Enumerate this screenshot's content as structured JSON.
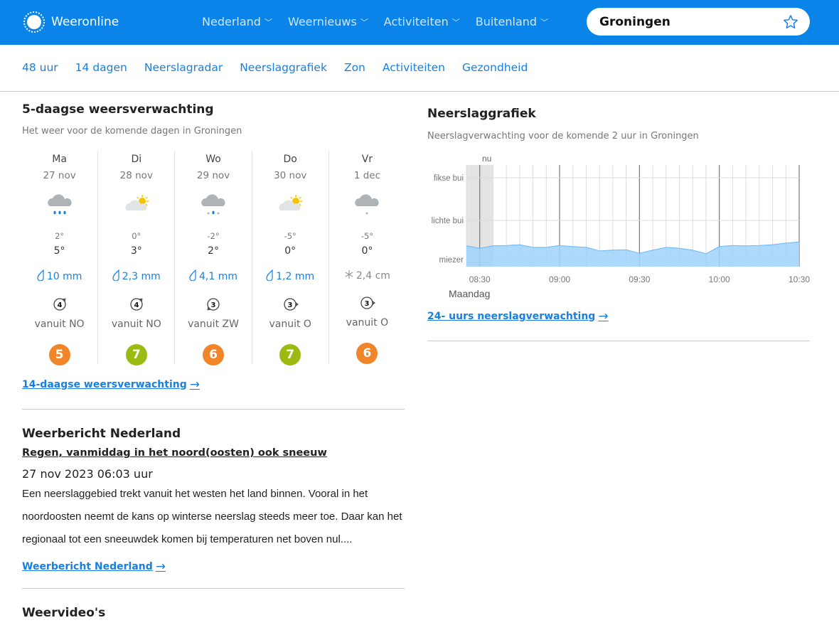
{
  "header": {
    "logo": "Weeronline",
    "nav": [
      "Nederland",
      "Weernieuws",
      "Activiteiten",
      "Buitenland"
    ],
    "search_value": "Groningen",
    "favorite_icon": "star-icon"
  },
  "subnav": [
    "48 uur",
    "14 dagen",
    "Neerslagradar",
    "Neerslaggrafiek",
    "Zon",
    "Activiteiten",
    "Gezondheid"
  ],
  "forecast": {
    "title": "5-daagse weersverwachting",
    "subtitle": "Het weer voor de komende dagen in Groningen",
    "days": [
      {
        "day": "Ma",
        "date": "27 nov",
        "icon": "cloud-rain-icon",
        "tmin": "2°",
        "tmax": "5°",
        "precip": "10 mm",
        "precip_type": "rain",
        "wind_force": "4",
        "wind_dir": "vanuit NO",
        "score": "5",
        "score_color": "#f0852a"
      },
      {
        "day": "Di",
        "date": "28 nov",
        "icon": "cloud-sun-icon",
        "tmin": "0°",
        "tmax": "3°",
        "precip": "2,3 mm",
        "precip_type": "rain",
        "wind_force": "4",
        "wind_dir": "vanuit NO",
        "score": "7",
        "score_color": "#9bbb12"
      },
      {
        "day": "Wo",
        "date": "29 nov",
        "icon": "cloud-sleet-icon",
        "tmin": "-2°",
        "tmax": "2°",
        "precip": "4,1 mm",
        "precip_type": "rain",
        "wind_force": "3",
        "wind_dir": "vanuit ZW",
        "score": "6",
        "score_color": "#f0852a"
      },
      {
        "day": "Do",
        "date": "30 nov",
        "icon": "cloud-sun-icon",
        "tmin": "-5°",
        "tmax": "0°",
        "precip": "1,2 mm",
        "precip_type": "rain",
        "wind_force": "3",
        "wind_dir": "vanuit O",
        "score": "7",
        "score_color": "#9bbb12"
      },
      {
        "day": "Vr",
        "date": "1 dec",
        "icon": "cloud-snow-icon",
        "tmin": "-5°",
        "tmax": "0°",
        "precip": "2,4 cm",
        "precip_type": "snow",
        "wind_force": "3",
        "wind_dir": "vanuit O",
        "score": "6",
        "score_color": "#f0852a"
      }
    ],
    "link": "14-daagse weersverwachting"
  },
  "report": {
    "title": "Weerbericht Nederland",
    "headline": "Regen, vanmiddag in het noord(oosten) ook sneeuw",
    "date": "27 nov 2023 06:03 uur",
    "body": "Een neerslaggebied trekt vanuit het westen het land binnen. Vooral in het noordoosten neemt de kans op winterse neerslag steeds meer toe. Daar kan het regionaal tot een sneeuwdek komen bij temperaturen net boven nul....",
    "link": "Weerbericht Nederland"
  },
  "videos": {
    "title": "Weervideo's"
  },
  "precip": {
    "title": "Neerslaggrafiek",
    "subtitle": "Neerslagverwachting voor de komende 2 uur in Groningen",
    "link": "24- uurs neerslagverwachting"
  },
  "chart_data": {
    "type": "area",
    "now_label": "nu",
    "day_label": "Maandag",
    "x": [
      "08:25",
      "08:30",
      "08:35",
      "08:40",
      "08:45",
      "08:50",
      "08:55",
      "09:00",
      "09:05",
      "09:10",
      "09:15",
      "09:20",
      "09:25",
      "09:30",
      "09:35",
      "09:40",
      "09:45",
      "09:50",
      "09:55",
      "10:00",
      "10:05",
      "10:10",
      "10:15",
      "10:20",
      "10:25",
      "10:30"
    ],
    "values": [
      1.35,
      1.29,
      1.35,
      1.36,
      1.38,
      1.31,
      1.31,
      1.36,
      1.33,
      1.31,
      1.22,
      1.24,
      1.25,
      1.16,
      1.24,
      1.31,
      1.29,
      1.24,
      1.15,
      1.33,
      1.36,
      1.35,
      1.36,
      1.38,
      1.42,
      1.45
    ],
    "xticks": [
      "08:30",
      "09:00",
      "09:30",
      "10:00",
      "10:30"
    ],
    "ylevels": [
      {
        "label": "miezer",
        "value": 1
      },
      {
        "label": "lichte bui",
        "value": 2
      },
      {
        "label": "fikse bui",
        "value": 3
      }
    ],
    "past_until": "08:35",
    "fill_color": "#9fd2fb",
    "line_color": "#6ab7f5",
    "grid": true
  }
}
